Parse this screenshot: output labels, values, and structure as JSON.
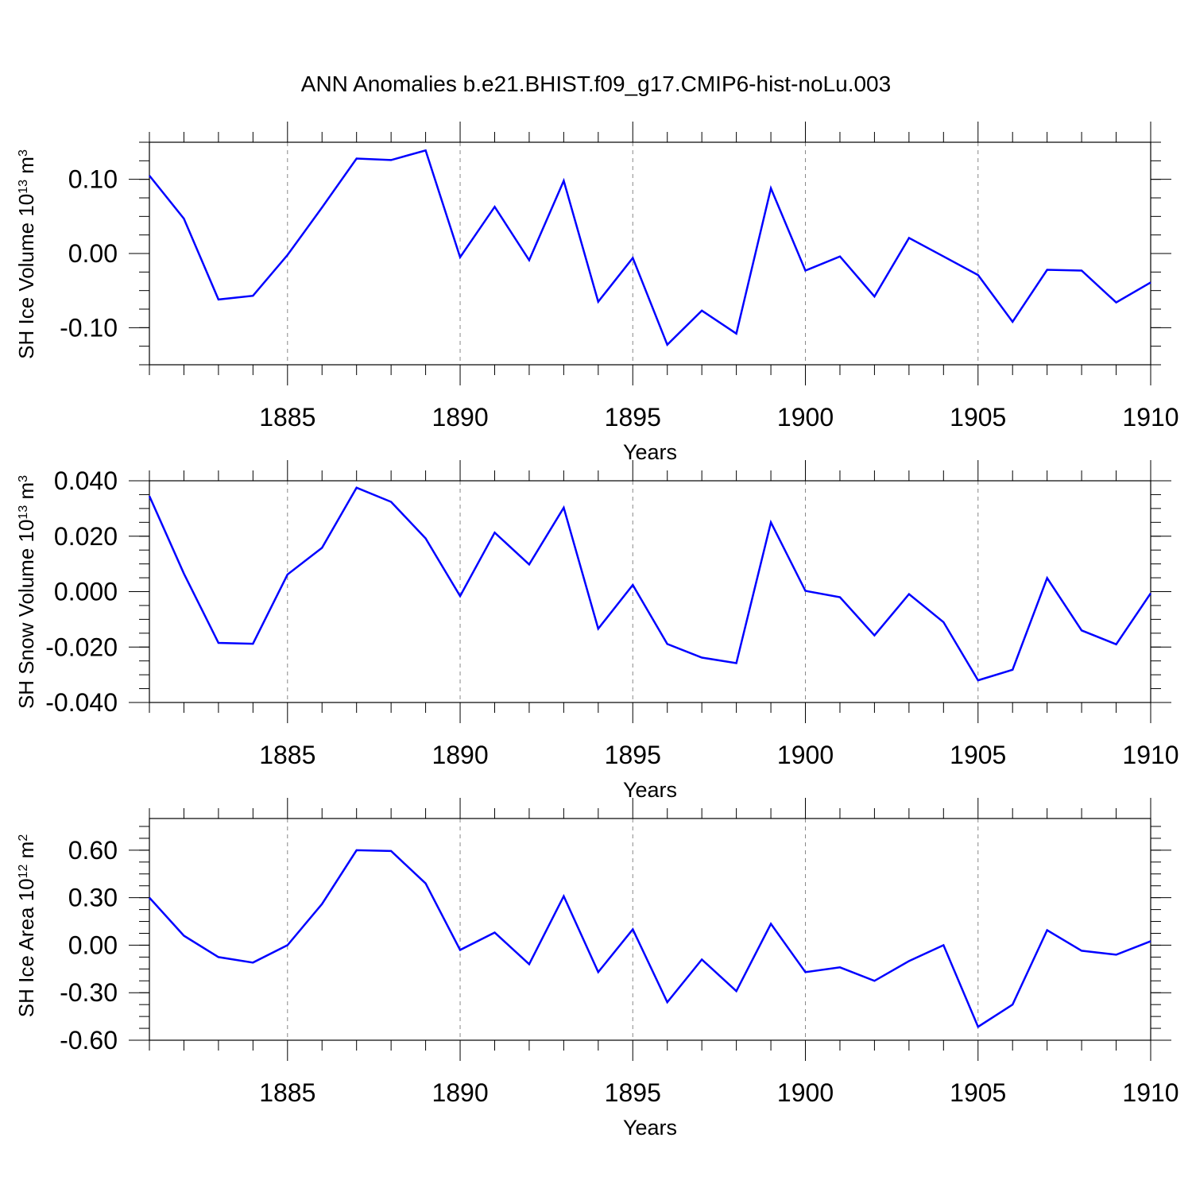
{
  "title": "ANN Anomalies b.e21.BHIST.f09_g17.CMIP6-hist-noLu.003",
  "chart_data": [
    {
      "type": "line",
      "ylabel": "SH Ice Volume 10",
      "ylabel_exp": "13",
      "ylabel_unit": " m",
      "ylabel_unit_exp": "3",
      "xlabel": "Years",
      "xlim": [
        1881,
        1910
      ],
      "ylim": [
        -0.15,
        0.15
      ],
      "xticks": [
        1885,
        1890,
        1895,
        1900,
        1905,
        1910
      ],
      "yticks": [
        -0.1,
        0.0,
        0.1
      ],
      "ytick_labels": [
        "-0.10",
        "0.00",
        "0.10"
      ],
      "series": [
        {
          "name": "SH Ice Volume",
          "color": "#0000ff",
          "x": [
            1881,
            1882,
            1883,
            1884,
            1885,
            1886,
            1887,
            1888,
            1889,
            1890,
            1891,
            1892,
            1893,
            1894,
            1895,
            1896,
            1897,
            1898,
            1899,
            1900,
            1901,
            1902,
            1903,
            1904,
            1905,
            1906,
            1907,
            1908,
            1909,
            1910
          ],
          "values": [
            0.105,
            0.047,
            -0.062,
            -0.057,
            -0.002,
            0.062,
            0.128,
            0.126,
            0.139,
            -0.005,
            0.063,
            -0.009,
            0.098,
            -0.065,
            -0.006,
            -0.123,
            -0.077,
            -0.108,
            0.088,
            -0.023,
            -0.004,
            -0.058,
            0.021,
            -0.004,
            -0.029,
            -0.092,
            -0.022,
            -0.023,
            -0.066,
            -0.039
          ]
        }
      ]
    },
    {
      "type": "line",
      "ylabel": "SH Snow Volume 10",
      "ylabel_exp": "13",
      "ylabel_unit": " m",
      "ylabel_unit_exp": "3",
      "xlabel": "Years",
      "xlim": [
        1881,
        1910
      ],
      "ylim": [
        -0.04,
        0.04
      ],
      "xticks": [
        1885,
        1890,
        1895,
        1900,
        1905,
        1910
      ],
      "yticks": [
        -0.04,
        -0.02,
        0.0,
        0.02,
        0.04
      ],
      "ytick_labels": [
        "-0.040",
        "-0.020",
        "0.000",
        "0.020",
        "0.040"
      ],
      "series": [
        {
          "name": "SH Snow Volume",
          "color": "#0000ff",
          "x": [
            1881,
            1882,
            1883,
            1884,
            1885,
            1886,
            1887,
            1888,
            1889,
            1890,
            1891,
            1892,
            1893,
            1894,
            1895,
            1896,
            1897,
            1898,
            1899,
            1900,
            1901,
            1902,
            1903,
            1904,
            1905,
            1906,
            1907,
            1908,
            1909,
            1910
          ],
          "values": [
            0.0345,
            0.0065,
            -0.0185,
            -0.0188,
            0.0062,
            0.0158,
            0.0375,
            0.0324,
            0.0192,
            -0.0016,
            0.0213,
            0.0098,
            0.0303,
            -0.0134,
            0.0024,
            -0.0189,
            -0.0238,
            -0.0258,
            0.025,
            0.0003,
            -0.002,
            -0.0158,
            -0.0009,
            -0.011,
            -0.032,
            -0.0282,
            0.0049,
            -0.014,
            -0.019,
            -0.0006
          ]
        }
      ]
    },
    {
      "type": "line",
      "ylabel": "SH Ice Area 10",
      "ylabel_exp": "12",
      "ylabel_unit": " m",
      "ylabel_unit_exp": "2",
      "xlabel": "Years",
      "xlim": [
        1881,
        1910
      ],
      "ylim": [
        -0.6,
        0.8
      ],
      "xticks": [
        1885,
        1890,
        1895,
        1900,
        1905,
        1910
      ],
      "yticks": [
        -0.6,
        -0.3,
        0.0,
        0.3,
        0.6
      ],
      "ytick_labels": [
        "-0.60",
        "-0.30",
        "0.00",
        "0.30",
        "0.60"
      ],
      "series": [
        {
          "name": "SH Ice Area",
          "color": "#0000ff",
          "x": [
            1881,
            1882,
            1883,
            1884,
            1885,
            1886,
            1887,
            1888,
            1889,
            1890,
            1891,
            1892,
            1893,
            1894,
            1895,
            1896,
            1897,
            1898,
            1899,
            1900,
            1901,
            1902,
            1903,
            1904,
            1905,
            1906,
            1907,
            1908,
            1909,
            1910
          ],
          "values": [
            0.3,
            0.06,
            -0.075,
            -0.11,
            0.0,
            0.26,
            0.6,
            0.595,
            0.39,
            -0.03,
            0.08,
            -0.12,
            0.31,
            -0.17,
            0.1,
            -0.36,
            -0.09,
            -0.29,
            0.135,
            -0.17,
            -0.14,
            -0.225,
            -0.1,
            0.0,
            -0.515,
            -0.375,
            0.095,
            -0.035,
            -0.06,
            0.025
          ]
        }
      ]
    }
  ]
}
